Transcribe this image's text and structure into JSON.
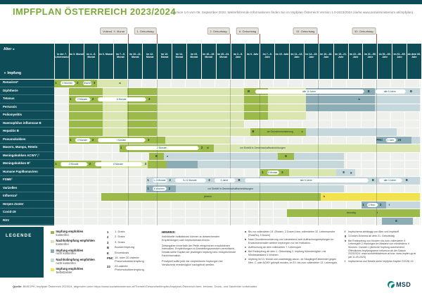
{
  "header": {
    "title": "IMPFPLAN ÖSTERREICH 2023/2024",
    "version_note": "Version 1.0 vom 05. September 2023. Weiterführende Informationen finden Sie im Impfplan Österreich Version 1.0-2023/2024 (siehe www.sozialministerium.at/impfplan)."
  },
  "colors": {
    "g": "#9cba4a",
    "lg": "#d9e6b0",
    "t": "#8cadb5",
    "lt": "#c6d8dc",
    "y": "#f2e24d",
    "header_teal": "#0e4d57",
    "title_green": "#7baa39",
    "row_bg": "#eef0ec",
    "tag_line": "#b2564e",
    "brand_teal": "#00857c"
  },
  "milestones": [
    {
      "label": "Vollend. 9. Monat",
      "u": 5
    },
    {
      "label": "1. Geburtstag",
      "u": 7
    },
    {
      "label": "2. Geburtstag",
      "u": 12
    },
    {
      "label": "6. Geburtstag",
      "u": 14
    },
    {
      "label": "15. Geburtstag",
      "u": 18
    },
    {
      "label": "50. Geburtstag",
      "u": 22
    }
  ],
  "table": {
    "corner": {
      "age_label": "Alter",
      "age_arrow": "►",
      "impfung_arrow": "▼",
      "impfung_label": "Impfung"
    },
    "columns": [
      "in der 7. Lebenswoche",
      "im 3. Monat",
      "im 4.–5. Monat",
      "im 6. Monat",
      "im 7.–9. Monat",
      "im 10.–11. Monat",
      "im 12. Monat",
      "im 13. Monat",
      "im 14. Monat",
      "im 15. Monat",
      "im 16.–19. Monat",
      "im 20.–24. Monat",
      "im 2.–5. Jahr",
      "im 6. Jahr",
      "im 7.–9. Jahr",
      "im 10. Jahr",
      "im 11.–13. Jahr",
      "im 14.–15. Jahr",
      "im 16.–18. Jahr",
      "im 19.–21. Jahr",
      "im 22.–30. Jahr",
      "im 31.–50. Jahr",
      "im 51.–60. Jahr",
      "im 61.–65. Jahr",
      "ab dem 66. Jahr"
    ],
    "rows": [
      {
        "label": "Rotaviren*",
        "s": [
          [
            "g",
            0,
            2.95
          ],
          [
            "lg",
            2.95,
            5
          ]
        ],
        "o": [
          {
            "t": "n",
            "x": 0.12,
            "v": "1"
          },
          {
            "t": "a",
            "x": 0.45,
            "e": 1.45,
            "v": "4 Wochen"
          },
          {
            "t": "n",
            "x": 1.6,
            "v": "2"
          },
          {
            "t": "a",
            "x": 1.95,
            "e": 2.6,
            "v": "4 Wochen"
          },
          {
            "t": "n",
            "x": 2.75,
            "v": "3"
          },
          {
            "t": "m",
            "x": 4.5,
            "v": "a"
          }
        ]
      },
      {
        "label": "Diphtherie",
        "s": [
          [
            "g",
            1,
            3.3
          ],
          [
            "lg",
            3.3,
            5
          ],
          [
            "g",
            5,
            7
          ],
          [
            "lg",
            7,
            13
          ],
          [
            "g",
            13,
            14.6
          ],
          [
            "lg",
            14.6,
            17.2
          ],
          [
            "t",
            17.2,
            21.9
          ],
          [
            "lt",
            21.9,
            25
          ]
        ],
        "o": [
          {
            "t": "n",
            "x": 13.3,
            "v": "B"
          },
          {
            "t": "a",
            "x": 13.75,
            "e": 21.2,
            "v": "alle 10 Jahre"
          },
          {
            "t": "n",
            "x": 21.5,
            "v": "B"
          },
          {
            "t": "a",
            "x": 21.95,
            "e": 24.05,
            "v": "alle 5 Jahre"
          },
          {
            "t": "n",
            "x": 24.4,
            "v": "B"
          }
        ]
      },
      {
        "label": "Tetanus",
        "s": [
          [
            "g",
            1,
            3.3
          ],
          [
            "lg",
            3.3,
            5
          ],
          [
            "g",
            5,
            7
          ],
          [
            "lg",
            7,
            13
          ],
          [
            "g",
            13,
            14.6
          ],
          [
            "lg",
            14.6,
            17.2
          ],
          [
            "t",
            17.2,
            21.9
          ],
          [
            "lt",
            21.9,
            25
          ]
        ],
        "o": [
          {
            "t": "n",
            "x": 1.12,
            "v": "1"
          },
          {
            "t": "a",
            "x": 1.45,
            "e": 2.5,
            "v": "2 Monate"
          },
          {
            "t": "n",
            "x": 2.65,
            "v": "2"
          },
          {
            "t": "a",
            "x": 3.0,
            "e": 6.3,
            "v": "6 Monate"
          },
          {
            "t": "n",
            "x": 6.5,
            "v": "3"
          },
          {
            "t": "m",
            "x": 20.85,
            "v": "b"
          }
        ]
      },
      {
        "label": "Pertussis",
        "s": [
          [
            "g",
            1,
            3.3
          ],
          [
            "lg",
            3.3,
            5
          ],
          [
            "g",
            5,
            7
          ],
          [
            "lg",
            7,
            13
          ],
          [
            "g",
            13,
            14.6
          ],
          [
            "lg",
            14.6,
            17.2
          ],
          [
            "t",
            17.2,
            21.9
          ],
          [
            "lt",
            21.9,
            25
          ]
        ],
        "o": []
      },
      {
        "label": "Poliomyelitis",
        "s": [
          [
            "g",
            1,
            3.3
          ],
          [
            "lg",
            3.3,
            5
          ],
          [
            "g",
            5,
            7
          ],
          [
            "lg",
            7,
            13
          ],
          [
            "g",
            13,
            14.6
          ],
          [
            "lg",
            14.6,
            17.2
          ]
        ],
        "o": []
      },
      {
        "label": "Haemophilus influenzae B",
        "s": [
          [
            "g",
            1,
            3.3
          ],
          [
            "lg",
            3.3,
            5
          ],
          [
            "g",
            5,
            7
          ],
          [
            "lg",
            7,
            13
          ]
        ],
        "o": []
      },
      {
        "label": "Hepatitis B",
        "s": [
          [
            "g",
            1,
            3.3
          ],
          [
            "lg",
            3.3,
            5
          ],
          [
            "g",
            5,
            7
          ],
          [
            "lg",
            7,
            13.4
          ],
          [
            "g",
            13.4,
            17.2
          ],
          [
            "lt",
            17.2,
            23.4
          ]
        ],
        "o": [
          {
            "t": "n",
            "x": 13.6,
            "v": "B"
          },
          {
            "t": "x",
            "x": 13.9,
            "e": 17.0,
            "v": "ab Grundimmunisierung"
          },
          {
            "t": "m",
            "x": 16.95,
            "v": "c"
          }
        ]
      },
      {
        "label": "Pneumokokken",
        "s": [
          [
            "g",
            1,
            7.6
          ],
          [
            "lg",
            7.6,
            12
          ],
          [
            "t",
            22,
            24.4
          ],
          [
            "lt",
            24.4,
            25
          ]
        ],
        "o": [
          {
            "t": "n",
            "x": 1.12,
            "v": "1"
          },
          {
            "t": "a",
            "x": 1.45,
            "e": 2.5,
            "v": "2 Monate"
          },
          {
            "t": "n",
            "x": 2.65,
            "v": "2"
          },
          {
            "t": "a",
            "x": 3.0,
            "e": 6.25,
            "v": "7 Monate"
          },
          {
            "t": "n",
            "x": 6.45,
            "v": "3"
          },
          {
            "t": "n",
            "x": 22.25,
            "v": "PNC"
          },
          {
            "t": "a",
            "x": 22.7,
            "e": 23.4,
            "v": "1 Jahr"
          },
          {
            "t": "n",
            "x": 23.6,
            "v": "23"
          }
        ]
      },
      {
        "label": "Masern, Mumps, Röteln",
        "s": [
          [
            "g",
            4.45,
            10.9
          ],
          [
            "lg",
            10.9,
            25
          ]
        ],
        "o": [
          {
            "t": "n",
            "x": 4.57,
            "v": "1"
          },
          {
            "t": "a",
            "x": 4.9,
            "e": 9.9,
            "v": "2 Monate"
          },
          {
            "t": "n",
            "x": 10.1,
            "v": "2"
          },
          {
            "t": "m",
            "x": 10.5,
            "v": "d"
          },
          {
            "t": "x",
            "x": 11.0,
            "e": 17.5,
            "v": "vor Eintritt in Gemeinschaftseinrichtungen"
          }
        ]
      },
      {
        "label": "Meningokokken ACWY¹,²",
        "s": [
          [
            "g",
            6.5,
            7.5
          ],
          [
            "lt",
            7.5,
            15.3
          ],
          [
            "g",
            15.3,
            16.4
          ],
          [
            "lt",
            16.4,
            19.8
          ]
        ],
        "o": [
          {
            "t": "n",
            "x": 7.0,
            "v": "E"
          },
          {
            "t": "m",
            "x": 7.75,
            "v": "e"
          },
          {
            "t": "n",
            "x": 15.85,
            "v": "E"
          }
        ]
      },
      {
        "label": "Meningokokken B²",
        "s": [
          [
            "g",
            0,
            3.2
          ],
          [
            "lg",
            3.2,
            6.4
          ],
          [
            "g",
            6.4,
            7.7
          ],
          [
            "t",
            7.7,
            9.8
          ],
          [
            "lt",
            9.8,
            19.8
          ]
        ],
        "o": [
          {
            "t": "n",
            "x": 0.12,
            "v": "1"
          },
          {
            "t": "a",
            "x": 0.45,
            "e": 2.3,
            "v": "2 Monate"
          },
          {
            "t": "n",
            "x": 2.45,
            "v": "2"
          },
          {
            "t": "a",
            "x": 2.8,
            "e": 6.05,
            "v": "6 Monate"
          },
          {
            "t": "n",
            "x": 6.25,
            "v": "3"
          }
        ]
      },
      {
        "label": "Humane Papillomaviren",
        "s": [
          [
            "g",
            14.1,
            16.05
          ],
          [
            "lg",
            16.05,
            19.3
          ],
          [
            "lt",
            19.3,
            20.6
          ]
        ],
        "o": [
          {
            "t": "n",
            "x": 14.25,
            "v": "1"
          },
          {
            "t": "a",
            "x": 14.55,
            "e": 15.4,
            "v": "6 Monate"
          },
          {
            "t": "n",
            "x": 15.6,
            "v": "2"
          },
          {
            "t": "n",
            "x": 19.8,
            "v": "E"
          },
          {
            "t": "m",
            "x": 20.3,
            "v": "g"
          }
        ]
      },
      {
        "label": "FSME¹",
        "s": [
          [
            "lt",
            6.3,
            25
          ]
        ],
        "o": [
          {
            "t": "n",
            "x": 6.42,
            "v": "1"
          },
          {
            "t": "a",
            "x": 6.75,
            "e": 7.75,
            "v": "1–3 Monate"
          },
          {
            "t": "n",
            "x": 7.92,
            "v": "2"
          },
          {
            "t": "a",
            "x": 8.25,
            "e": 10.4,
            "v": "5–12 Monate"
          },
          {
            "t": "n",
            "x": 10.6,
            "v": "3"
          },
          {
            "t": "a",
            "x": 10.95,
            "e": 12.4,
            "v": "3 Jahre"
          },
          {
            "t": "n",
            "x": 12.65,
            "v": "B"
          },
          {
            "t": "a",
            "x": 13.05,
            "e": 21.5,
            "v": "alle 5 Jahre"
          },
          {
            "t": "n",
            "x": 21.8,
            "v": "B"
          },
          {
            "t": "a",
            "x": 22.2,
            "e": 23.8,
            "v": "alle 3 Jahre"
          },
          {
            "t": "n",
            "x": 24.1,
            "v": "B"
          }
        ]
      },
      {
        "label": "Varizellen",
        "s": [
          [
            "t",
            6.3,
            8.3
          ],
          [
            "lt",
            8.3,
            19.8
          ]
        ],
        "o": [
          {
            "t": "n",
            "x": 6.42,
            "v": "1"
          },
          {
            "t": "a",
            "x": 6.75,
            "e": 7.7,
            "v": "6 Wochen"
          },
          {
            "t": "n",
            "x": 7.88,
            "v": "2"
          },
          {
            "t": "x",
            "x": 8.6,
            "e": 15.5,
            "v": "vor Eintritt in Gemeinschaftseinrichtungen"
          }
        ]
      },
      {
        "label": "Influenza²",
        "s": [
          [
            "g",
            3.2,
            18.2
          ],
          [
            "y",
            18.2,
            25
          ]
        ],
        "o": [
          {
            "t": "x",
            "x": 8.0,
            "e": 13.0,
            "v": "jährlich"
          },
          {
            "t": "m",
            "x": 18.45,
            "v": "h"
          }
        ]
      },
      {
        "label": "Herpes Zoster",
        "s": [
          [
            "t",
            21,
            22.7
          ],
          [
            "lt",
            22.7,
            25
          ]
        ],
        "o": [
          {
            "t": "n",
            "x": 21.12,
            "v": "1"
          },
          {
            "t": "a",
            "x": 21.4,
            "e": 22.15,
            "v": "2 Mon."
          },
          {
            "t": "n",
            "x": 22.32,
            "v": "2"
          },
          {
            "t": "m",
            "x": 22.9,
            "v": "f"
          }
        ]
      },
      {
        "label": "Covid-19",
        "s": [
          [
            "g",
            15.9,
            25
          ]
        ],
        "o": [
          {
            "t": "x",
            "x": 18.8,
            "e": 21.8,
            "v": "einmalig"
          },
          {
            "t": "m",
            "x": 22.1,
            "v": "i"
          }
        ]
      },
      {
        "label": "RSV",
        "s": [
          [
            "t",
            22.4,
            24.5
          ]
        ],
        "o": [
          {
            "t": "n",
            "x": 23.4,
            "v": "E"
          }
        ]
      }
    ]
  },
  "legend": {
    "title": "LEGENDE",
    "items": [
      {
        "c": "g",
        "l1": "Impfung empfohlen",
        "l2": "kostenfrei"
      },
      {
        "c": "lg",
        "l1": "Nachholimpfung empfohlen",
        "l2": "kostenfrei"
      },
      {
        "c": "t",
        "l1": "Impfung empfohlen",
        "l2": "nicht kostenfrei"
      },
      {
        "c": "lt",
        "l1": "Nachholimpfung empfohlen",
        "l2": "nicht kostenfrei"
      },
      {
        "c": "y",
        "l1": "Impfung empfohlen",
        "l2": "Selbstzahler"
      }
    ],
    "symbols": [
      {
        "k": "1",
        "v": "1. Dosis"
      },
      {
        "k": "2",
        "v": "2. Dosis"
      },
      {
        "k": "3",
        "v": "3. Dosis"
      },
      {
        "k": "B",
        "v": "Boosterimpfung"
      },
      {
        "k": "E",
        "v": "Einzeldosis"
      },
      {
        "k": "PNC",
        "v": "15- oder 20-valente Pneumokokkenimpfung"
      },
      {
        "k": "23",
        "v": "23-valente Pneumokokkenimpfung"
      }
    ]
  },
  "hinweis": {
    "title": "HINWEIS:",
    "paragraphs": [
      "Individuelle Indikationen können zu abweichenden Empfehlungen oder Impfschemata führen.",
      "Zeitangaben innerhalb der Pfeile entsprechen empfohlenen Intervallen. Empfehlungen zu Darstellungszwecken vereinfacht. Details siehe Kapitel der jeweiligen Impfung bzw. entsprechende Fachinformation.",
      "Prinzipiell sollte jede der empfohlenen Impfungen bei Versäumnis ehestmöglich nachgeholt werden."
    ]
  },
  "footnotes": {
    "col1": [
      {
        "k": "a",
        "v": "Bis zur vollendeten 24. (Rotarix, 2 Dosen) bzw. vollendeten 32. Lebenswoche (RotaTeq, 3 Dosen)"
      },
      {
        "k": "b",
        "v": "Nach Grundimmunisierung und mindestens zwei Auffrischungsimpfungen im Erwachsenenalter weitere Impfungen nur bei Indikation."
      },
      {
        "k": "c",
        "v": "Auffrischung ab dem vollendeten 7. Lebensjahr"
      },
      {
        "k": "d",
        "v": "Bei Erstimpfung ab dem 1. Geburtstag 2. Impfung frühestmöglich, mit Mindestabstand 4 Wochen."
      },
      {
        "k": "e",
        "v": "Impfung im 13. Monat und unabhängig davon, ob Säuglinge/Kleinkinder gegen Men. C oder ACWY geimpft wurden, im 10. bis zum vollendeten 13. Lebensjahr."
      }
    ],
    "col2": [
      {
        "k": "f",
        "v": "Impfschema abhängig von Alter und Impfstoff"
      },
      {
        "k": "g",
        "v": "3-Dosen-Schema ab dem 21. Geburtstag"
      },
      {
        "k": "h",
        "v": "Bei Erstimpfung von Kindern bis zum vollendeten 9. Lebensjahr 2 Impfungen im Abstand von mindestens 4 Wochen. Danach 1 jährliche Impfung ausreichend. Öffentliches Impfprogramm Influenza ab der Saison 2023/2024: www.sozialministerium.at bzw. www.impfen.gv.at (ab 11.09.2023)"
      },
      {
        "k": "i",
        "v": "Impfschema und Details siehe Impfplan Kapitel COVID-19"
      }
    ]
  },
  "footer": {
    "prefix": "Quelle:",
    "text": " BMSGPK, Impfplan Österreich 2023/24, abgerufen unter https://www.sozialministerium.at/Themen/Gesundheit/Impfen/Impfplan-Österreich.html. Irrtümer, Druck- und Satzfehler vorbehalten.",
    "brand": "MSD"
  }
}
